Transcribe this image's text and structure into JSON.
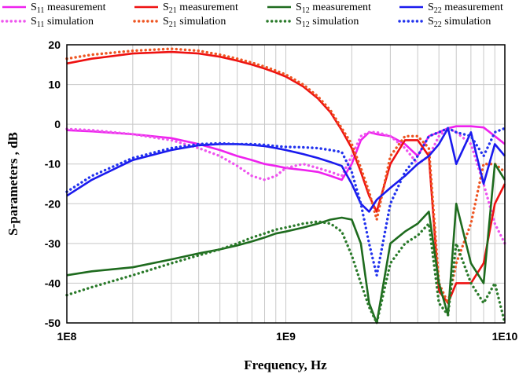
{
  "chart_data": {
    "type": "line",
    "title": "",
    "xlabel": "Frequency, Hz",
    "ylabel": "S-parameters , dB",
    "x_scale": "log",
    "xlim": [
      100000000,
      10000000000
    ],
    "ylim": [
      -50,
      20
    ],
    "x_ticks": [
      100000000,
      1000000000,
      10000000000
    ],
    "x_tick_labels": [
      "1E8",
      "1E9",
      "1E10"
    ],
    "y_ticks": [
      20,
      10,
      0,
      -10,
      -20,
      -30,
      -40,
      -50
    ],
    "y_tick_labels": [
      "20",
      "10",
      "0",
      "-10",
      "-20",
      "-30",
      "-40",
      "-50"
    ],
    "grid": true,
    "legend_position": "top",
    "series": [
      {
        "name": "S11 measurement",
        "label_base": "S",
        "label_sub": "11",
        "label_rest": " measurement",
        "color": "#ee22ee",
        "dash": "solid",
        "x": [
          100000000.0,
          130000000.0,
          200000000.0,
          300000000.0,
          400000000.0,
          500000000.0,
          600000000.0,
          700000000.0,
          800000000.0,
          900000000.0,
          1000000000.0,
          1200000000.0,
          1400000000.0,
          1600000000.0,
          1800000000.0,
          2000000000.0,
          2200000000.0,
          2400000000.0,
          2600000000.0,
          3000000000.0,
          3500000000.0,
          4000000000.0,
          4500000000.0,
          5000000000.0,
          5500000000.0,
          6000000000.0,
          7000000000.0,
          8000000000.0,
          9000000000.0,
          10000000000.0
        ],
        "y": [
          -1.5,
          -1.8,
          -2.5,
          -3.5,
          -5,
          -6.5,
          -8,
          -9,
          -10,
          -10.5,
          -11,
          -11.5,
          -12,
          -13,
          -14,
          -10,
          -4,
          -2,
          -2.5,
          -3,
          -5,
          -8,
          -3,
          -2,
          -1,
          -0.5,
          -0.5,
          -0.8,
          -3,
          -5
        ]
      },
      {
        "name": "S11 simulation",
        "label_base": "S",
        "label_sub": "11",
        "label_rest": " simulation",
        "color": "#ee55ee",
        "dash": "dotted",
        "x": [
          100000000.0,
          130000000.0,
          200000000.0,
          300000000.0,
          400000000.0,
          500000000.0,
          600000000.0,
          700000000.0,
          800000000.0,
          900000000.0,
          1000000000.0,
          1200000000.0,
          1400000000.0,
          1600000000.0,
          1800000000.0,
          2000000000.0,
          2200000000.0,
          2400000000.0,
          2600000000.0,
          3000000000.0,
          3500000000.0,
          4000000000.0,
          4500000000.0,
          5000000000.0,
          5500000000.0,
          6000000000.0,
          7000000000.0,
          8000000000.0,
          9000000000.0,
          10000000000.0
        ],
        "y": [
          -1.2,
          -1.5,
          -2.5,
          -4,
          -6,
          -8,
          -10.5,
          -13,
          -14,
          -13,
          -11,
          -10,
          -11,
          -12,
          -13,
          -8,
          -3,
          -2,
          -2,
          -3,
          -6,
          -10,
          -8,
          -3,
          -1,
          -2,
          -5,
          -15,
          -25,
          -30
        ]
      },
      {
        "name": "S21 measurement",
        "label_base": "S",
        "label_sub": "21",
        "label_rest": " measurement",
        "color": "#ee1111",
        "dash": "solid",
        "x": [
          100000000.0,
          130000000.0,
          200000000.0,
          300000000.0,
          400000000.0,
          500000000.0,
          600000000.0,
          700000000.0,
          800000000.0,
          900000000.0,
          1000000000.0,
          1200000000.0,
          1400000000.0,
          1600000000.0,
          1800000000.0,
          2000000000.0,
          2200000000.0,
          2400000000.0,
          2600000000.0,
          3000000000.0,
          3500000000.0,
          4000000000.0,
          4500000000.0,
          5000000000.0,
          5500000000.0,
          6000000000.0,
          7000000000.0,
          8000000000.0,
          9000000000.0,
          10000000000.0
        ],
        "y": [
          15.3,
          16.5,
          17.8,
          18.2,
          17.8,
          17,
          16,
          15,
          14,
          13,
          12,
          9.5,
          6.5,
          3,
          -1.5,
          -6,
          -12,
          -18,
          -22,
          -10,
          -4,
          -4,
          -8,
          -42,
          -45,
          -40,
          -40,
          -35,
          -20,
          -15
        ]
      },
      {
        "name": "S21 simulation",
        "label_base": "S",
        "label_sub": "21",
        "label_rest": " simulation",
        "color": "#ee5522",
        "dash": "dotted",
        "x": [
          100000000.0,
          130000000.0,
          200000000.0,
          300000000.0,
          400000000.0,
          500000000.0,
          600000000.0,
          700000000.0,
          800000000.0,
          900000000.0,
          1000000000.0,
          1200000000.0,
          1400000000.0,
          1600000000.0,
          1800000000.0,
          2000000000.0,
          2200000000.0,
          2400000000.0,
          2600000000.0,
          3000000000.0,
          3500000000.0,
          4000000000.0,
          4500000000.0,
          5000000000.0,
          5500000000.0,
          6000000000.0,
          7000000000.0,
          8000000000.0,
          9000000000.0,
          10000000000.0
        ],
        "y": [
          16.5,
          17.5,
          18.5,
          19,
          18.5,
          17.5,
          16.5,
          15.5,
          14.5,
          13.5,
          12.5,
          10,
          7,
          3.5,
          -1,
          -5,
          -11,
          -17,
          -24,
          -8,
          -3,
          -3,
          -6,
          -40,
          -45,
          -35,
          -25,
          -10,
          -10,
          -12
        ]
      },
      {
        "name": "S12 measurement",
        "label_base": "S",
        "label_sub": "12",
        "label_rest": " measurement",
        "color": "#1e6b1e",
        "dash": "solid",
        "x": [
          100000000.0,
          130000000.0,
          200000000.0,
          300000000.0,
          400000000.0,
          500000000.0,
          600000000.0,
          700000000.0,
          800000000.0,
          900000000.0,
          1000000000.0,
          1200000000.0,
          1400000000.0,
          1600000000.0,
          1800000000.0,
          2000000000.0,
          2200000000.0,
          2400000000.0,
          2600000000.0,
          3000000000.0,
          3500000000.0,
          4000000000.0,
          4500000000.0,
          5000000000.0,
          5500000000.0,
          6000000000.0,
          7000000000.0,
          8000000000.0,
          9000000000.0,
          10000000000.0
        ],
        "y": [
          -38,
          -37,
          -36,
          -34,
          -32.5,
          -31.5,
          -30.5,
          -29.5,
          -28.5,
          -27.5,
          -27,
          -26,
          -25,
          -24,
          -23.5,
          -24,
          -30,
          -45,
          -50,
          -30,
          -27,
          -25,
          -22,
          -40,
          -48,
          -20,
          -35,
          -40,
          -10,
          -14
        ]
      },
      {
        "name": "S12 simulation",
        "label_base": "S",
        "label_sub": "12",
        "label_rest": " simulation",
        "color": "#2a7a2a",
        "dash": "dotted",
        "x": [
          100000000.0,
          130000000.0,
          200000000.0,
          300000000.0,
          400000000.0,
          500000000.0,
          600000000.0,
          700000000.0,
          800000000.0,
          900000000.0,
          1000000000.0,
          1200000000.0,
          1400000000.0,
          1600000000.0,
          1800000000.0,
          2000000000.0,
          2200000000.0,
          2400000000.0,
          2600000000.0,
          3000000000.0,
          3500000000.0,
          4000000000.0,
          4500000000.0,
          5000000000.0,
          5500000000.0,
          6000000000.0,
          7000000000.0,
          8000000000.0,
          9000000000.0,
          10000000000.0
        ],
        "y": [
          -43,
          -41,
          -38,
          -35,
          -33,
          -31.5,
          -30,
          -28.5,
          -27.5,
          -26.5,
          -26,
          -25,
          -24.5,
          -25,
          -27,
          -33,
          -40,
          -46,
          -50,
          -35,
          -30,
          -28,
          -25,
          -45,
          -48,
          -30,
          -40,
          -45,
          -40,
          -50
        ]
      },
      {
        "name": "S22 measurement",
        "label_base": "S",
        "label_sub": "22",
        "label_rest": " measurement",
        "color": "#1a1aee",
        "dash": "solid",
        "x": [
          100000000.0,
          130000000.0,
          200000000.0,
          300000000.0,
          400000000.0,
          500000000.0,
          600000000.0,
          700000000.0,
          800000000.0,
          900000000.0,
          1000000000.0,
          1200000000.0,
          1400000000.0,
          1600000000.0,
          1800000000.0,
          2000000000.0,
          2200000000.0,
          2400000000.0,
          2600000000.0,
          3000000000.0,
          3500000000.0,
          4000000000.0,
          4500000000.0,
          5000000000.0,
          5500000000.0,
          6000000000.0,
          7000000000.0,
          8000000000.0,
          9000000000.0,
          10000000000.0
        ],
        "y": [
          -18,
          -14,
          -9,
          -6.5,
          -5.3,
          -5,
          -5,
          -5.2,
          -5.5,
          -6,
          -6.5,
          -7.5,
          -8.5,
          -9.5,
          -10.5,
          -15,
          -20,
          -22,
          -19,
          -16,
          -13,
          -10,
          -8,
          -5,
          -1,
          -10,
          -2,
          -15,
          -5,
          -8
        ]
      },
      {
        "name": "S22 simulation",
        "label_base": "S",
        "label_sub": "22",
        "label_rest": " simulation",
        "color": "#2233ee",
        "dash": "dotted",
        "x": [
          100000000.0,
          130000000.0,
          200000000.0,
          300000000.0,
          400000000.0,
          500000000.0,
          600000000.0,
          700000000.0,
          800000000.0,
          900000000.0,
          1000000000.0,
          1200000000.0,
          1400000000.0,
          1600000000.0,
          1800000000.0,
          2000000000.0,
          2200000000.0,
          2400000000.0,
          2600000000.0,
          3000000000.0,
          3500000000.0,
          4000000000.0,
          4500000000.0,
          5000000000.0,
          5500000000.0,
          6000000000.0,
          7000000000.0,
          8000000000.0,
          9000000000.0,
          10000000000.0
        ],
        "y": [
          -17,
          -13,
          -8.5,
          -6,
          -5,
          -4.8,
          -5,
          -5,
          -5.2,
          -5.5,
          -5.7,
          -5.8,
          -6,
          -6.5,
          -7,
          -12,
          -20,
          -30,
          -38,
          -20,
          -12,
          -8,
          -3,
          -2,
          -1,
          -2,
          -3,
          -8,
          -2,
          -1
        ]
      }
    ]
  }
}
